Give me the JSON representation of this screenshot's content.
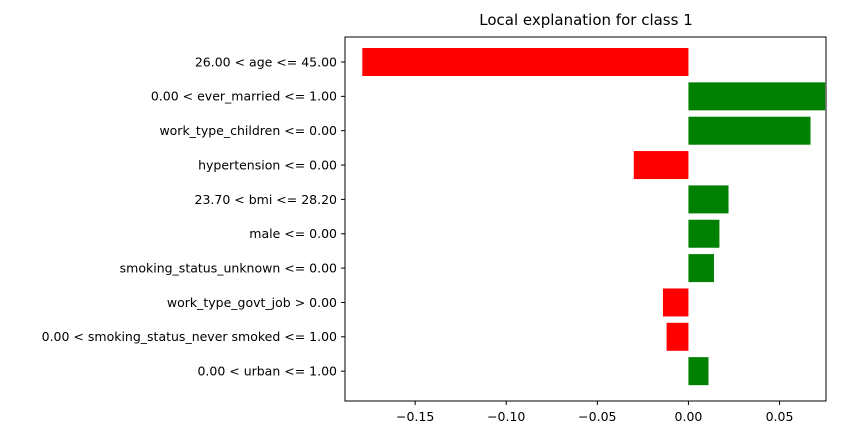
{
  "chart_data": {
    "type": "bar",
    "orientation": "horizontal",
    "title": "Local explanation for class 1",
    "xlabel": "",
    "ylabel": "",
    "grid": false,
    "xlim": [
      -0.1885,
      0.0755
    ],
    "xticks": [
      -0.15,
      -0.1,
      -0.05,
      0.0,
      0.05
    ],
    "xtick_labels": [
      "−0.15",
      "−0.10",
      "−0.05",
      "0.00",
      "0.05"
    ],
    "categories": [
      "26.00 < age <= 45.00",
      "0.00 < ever_married <= 1.00",
      "work_type_children <= 0.00",
      "hypertension <= 0.00",
      "23.70 < bmi <= 28.20",
      "male <= 0.00",
      "smoking_status_unknown <= 0.00",
      "work_type_govt_job > 0.00",
      "0.00 < smoking_status_never smoked <= 1.00",
      "0.00 < urban <= 1.00"
    ],
    "values": [
      -0.179,
      0.075,
      0.067,
      -0.03,
      0.022,
      0.017,
      0.014,
      -0.014,
      -0.012,
      0.011
    ],
    "colors": {
      "positive": "#008000",
      "negative": "#ff0000"
    }
  }
}
